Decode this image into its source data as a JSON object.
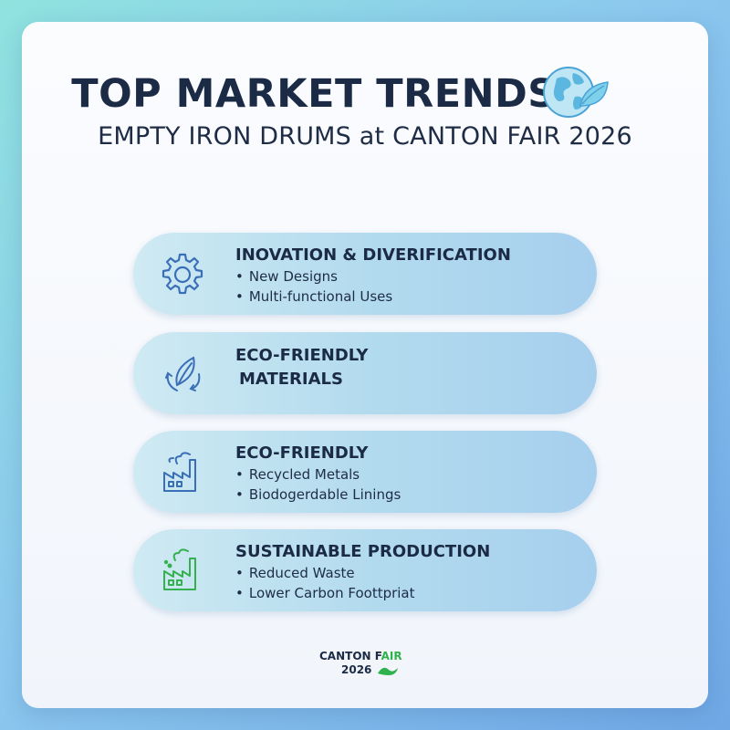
{
  "header": {
    "title": "TOP MARKET TRENDS",
    "subtitle": "EMPTY IRON DRUMS at CANTON FAIR 2026",
    "logo_icon": "globe-leaf-icon"
  },
  "trends": [
    {
      "icon": "gear-icon",
      "heading": "INOVATION & DIVERIFICATION",
      "bullets": [
        "New Designs",
        "Multi-functional Uses"
      ]
    },
    {
      "icon": "recycle-leaf-icon",
      "heading_line1": "ECO-FRIENDLY",
      "heading_line2": "MATERIALS",
      "bullets": []
    },
    {
      "icon": "factory-icon",
      "heading": "ECO-FRIENDLY",
      "bullets": [
        "Recycled Metals",
        "Biodogerdable Linings"
      ]
    },
    {
      "icon": "green-factory-icon",
      "heading": "SUSTAINABLE PRODUCTION",
      "bullets": [
        "Reduced Waste",
        "Lower Carbon Foottpriat"
      ]
    }
  ],
  "footer": {
    "line1_main": "CANTON F",
    "line1_accent": "AIR",
    "line2": "2026",
    "logo_icon": "dragon-icon"
  },
  "colors": {
    "heading": "#1b2a45",
    "icon_blue": "#3a6fb8",
    "icon_green": "#35b04f"
  }
}
